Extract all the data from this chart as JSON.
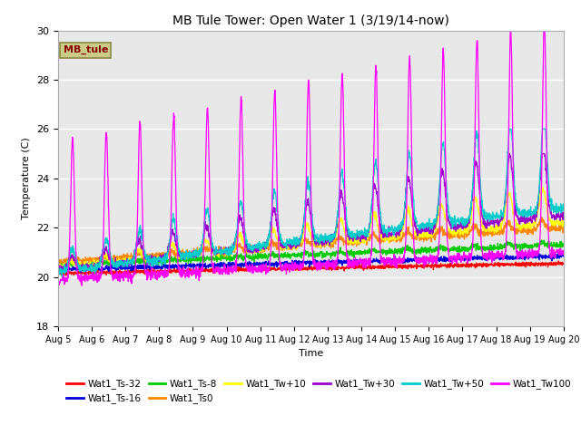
{
  "title": "MB Tule Tower: Open Water 1 (3/19/14-now)",
  "xlabel": "Time",
  "ylabel": "Temperature (C)",
  "ylim": [
    18,
    30
  ],
  "x_tick_labels": [
    "Aug 5",
    "Aug 6",
    "Aug 7",
    "Aug 8",
    "Aug 9",
    "Aug 10",
    "Aug 11",
    "Aug 12",
    "Aug 13",
    "Aug 14",
    "Aug 15",
    "Aug 16",
    "Aug 17",
    "Aug 18",
    "Aug 19",
    "Aug 20"
  ],
  "fig_bg_color": "#ffffff",
  "plot_bg_color": "#e8e8e8",
  "series_colors": {
    "Wat1_Ts-32": "#ff0000",
    "Wat1_Ts-16": "#0000dd",
    "Wat1_Ts-8": "#00cc00",
    "Wat1_Ts0": "#ff8800",
    "Wat1_Tw+10": "#ffff00",
    "Wat1_Tw+30": "#9900cc",
    "Wat1_Tw+50": "#00cccc",
    "Wat1_Tw100": "#ff00ff"
  },
  "legend_box_color": "#cccc88",
  "legend_box_text": "MB_tule",
  "legend_box_text_color": "#880000",
  "legend_row1": [
    "Wat1_Ts-32",
    "Wat1_Ts-16",
    "Wat1_Ts-8",
    "Wat1_Ts0",
    "Wat1_Tw+10",
    "Wat1_Tw+30"
  ],
  "legend_row2": [
    "Wat1_Tw+50",
    "Wat1_Tw100"
  ]
}
